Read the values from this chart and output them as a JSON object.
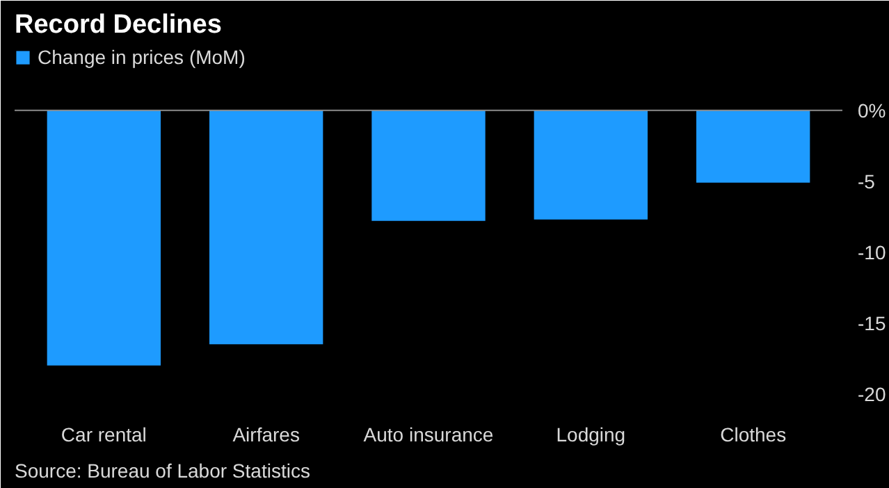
{
  "chart_data": {
    "type": "bar",
    "title": "Record Declines",
    "categories": [
      "Car rental",
      "Airfares",
      "Auto insurance",
      "Lodging",
      "Clothes"
    ],
    "series": [
      {
        "name": "Change in prices (MoM)",
        "color": "#1e9bff",
        "values": [
          -18.0,
          -16.5,
          -7.8,
          -7.7,
          -5.1
        ]
      }
    ],
    "ylim": [
      -21,
      4.5
    ],
    "yticks": [
      {
        "value": 0,
        "label": "0%"
      },
      -5,
      -10,
      -15,
      -20
    ],
    "ref_lines": [
      {
        "axis": "y",
        "value": 0,
        "color": "#8c8c8c"
      }
    ],
    "grid": false,
    "legend": "top left",
    "annotations": [
      "Source: Bureau of Labor Statistics"
    ]
  }
}
